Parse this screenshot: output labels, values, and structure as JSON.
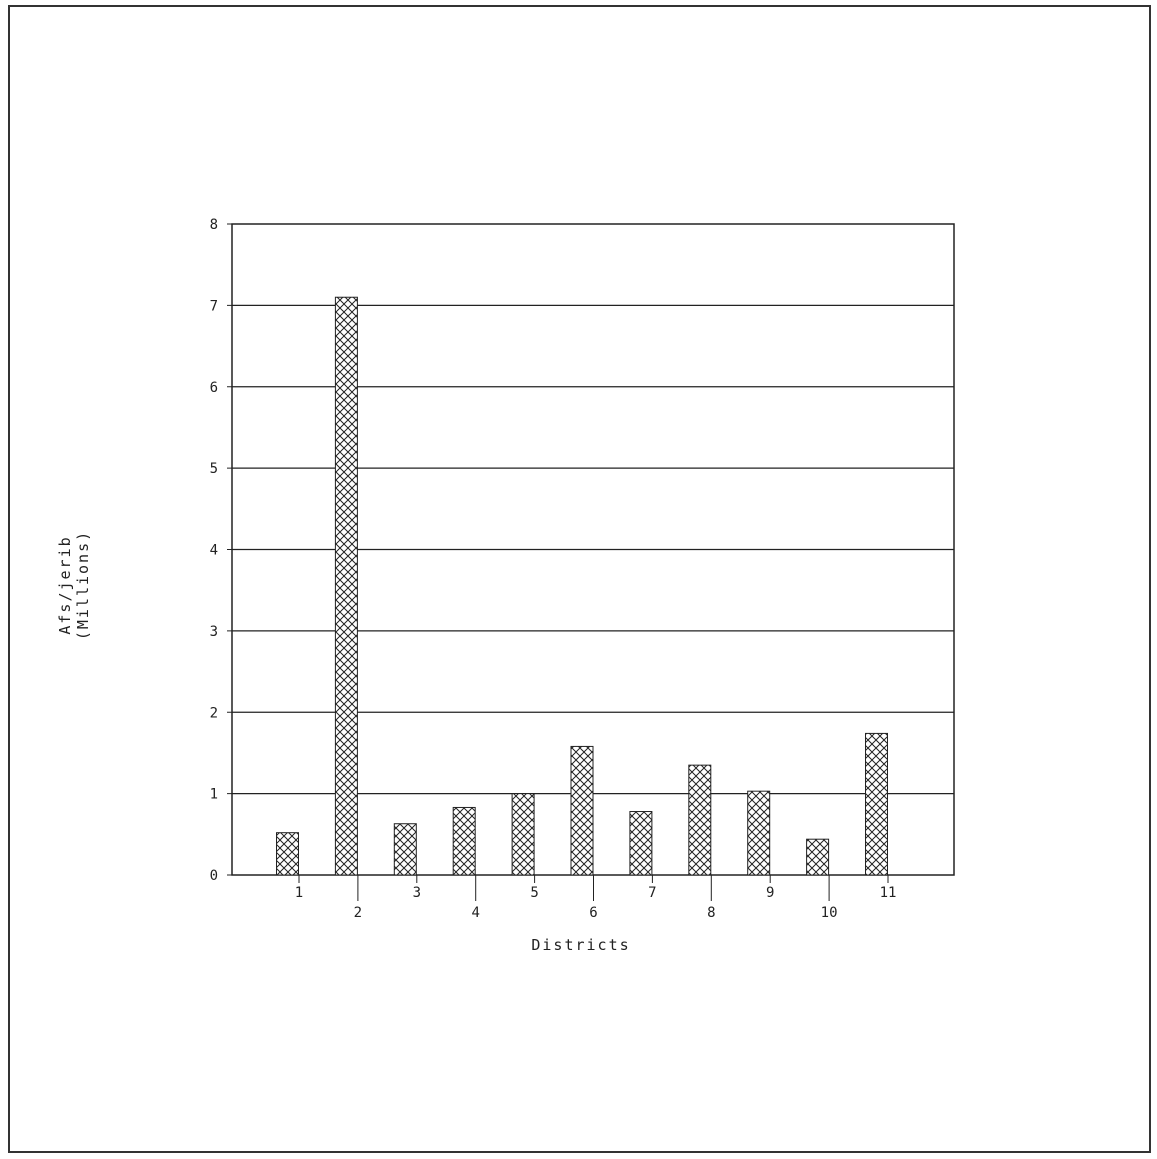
{
  "chart_data": {
    "type": "bar",
    "title": "",
    "xlabel": "Districts",
    "ylabel_lines": [
      "Afs/jerib",
      "(Millions)"
    ],
    "categories": [
      "1",
      "2",
      "3",
      "4",
      "5",
      "6",
      "7",
      "8",
      "9",
      "10",
      "11"
    ],
    "values": [
      0.52,
      7.1,
      0.63,
      0.83,
      1.0,
      1.58,
      0.78,
      1.35,
      1.03,
      0.44,
      1.74
    ],
    "yticks": [
      "0",
      "1",
      "2",
      "3",
      "4",
      "5",
      "6",
      "7",
      "8"
    ],
    "ylim": [
      0,
      8
    ],
    "grid": true,
    "bar_fill": "crosshatch",
    "colors": {
      "ink": "#222222",
      "background": "#ffffff"
    }
  }
}
